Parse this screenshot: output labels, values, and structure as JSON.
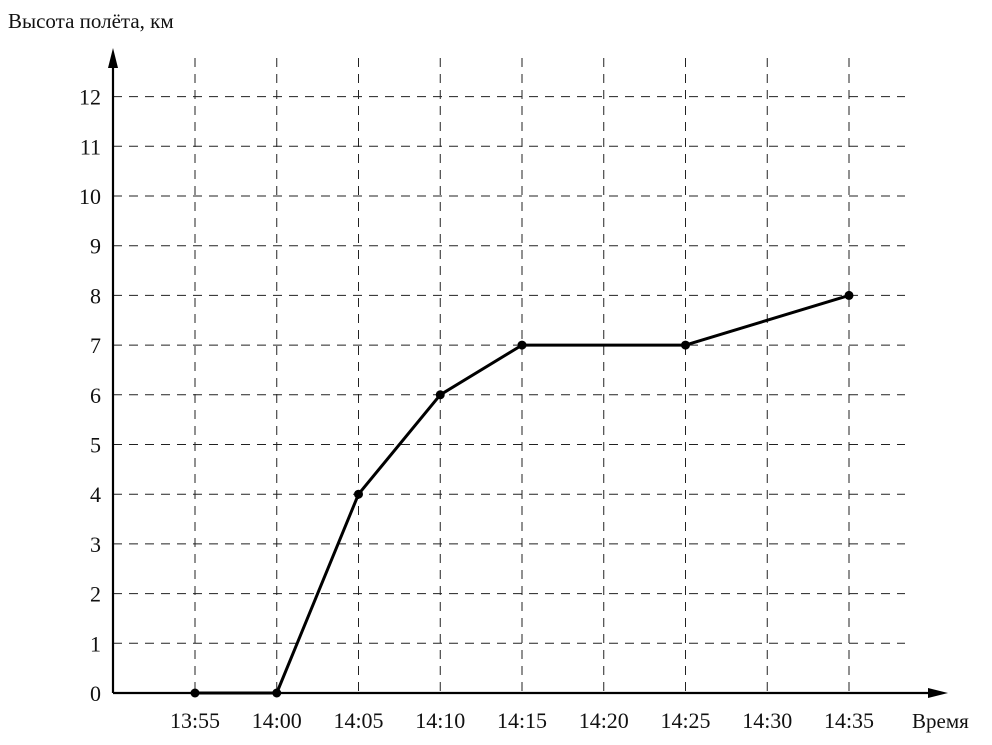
{
  "chart_data": {
    "type": "line",
    "ylabel": "Высота полёта, км",
    "xlabel": "Время",
    "x_ticks": [
      "13:55",
      "14:00",
      "14:05",
      "14:10",
      "14:15",
      "14:20",
      "14:25",
      "14:30",
      "14:35"
    ],
    "y_ticks": [
      "0",
      "1",
      "2",
      "3",
      "4",
      "5",
      "6",
      "7",
      "8",
      "9",
      "10",
      "11",
      "12"
    ],
    "ylim": [
      0,
      12
    ],
    "grid": true,
    "series": [
      {
        "x": [
          "13:55",
          "14:00",
          "14:05",
          "14:10",
          "14:15",
          "14:25",
          "14:35"
        ],
        "y": [
          0,
          0,
          4,
          6,
          7,
          7,
          8
        ]
      }
    ]
  },
  "colors": {
    "line": "#000000",
    "grid": "#222222"
  }
}
